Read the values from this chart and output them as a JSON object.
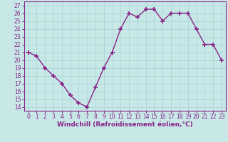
{
  "x": [
    0,
    1,
    2,
    3,
    4,
    5,
    6,
    7,
    8,
    9,
    10,
    11,
    12,
    13,
    14,
    15,
    16,
    17,
    18,
    19,
    20,
    21,
    22,
    23
  ],
  "y": [
    21,
    20.5,
    19,
    18,
    17,
    15.5,
    14.5,
    14,
    16.5,
    19,
    21,
    24,
    26,
    25.5,
    26.5,
    26.5,
    25,
    26,
    26,
    26,
    24,
    22,
    22,
    20
  ],
  "line_color": "#882288",
  "marker": "+",
  "marker_size": 4,
  "marker_lw": 1.2,
  "line_width": 1.0,
  "bg_color": "#c8e8e8",
  "grid_color": "#b0d8d8",
  "xlabel": "Windchill (Refroidissement éolien,°C)",
  "xlabel_color": "#882288",
  "xlabel_fontsize": 6.5,
  "tick_label_color": "#882288",
  "tick_fontsize": 5.5,
  "ylim": [
    13.5,
    27.5
  ],
  "yticks": [
    14,
    15,
    16,
    17,
    18,
    19,
    20,
    21,
    22,
    23,
    24,
    25,
    26,
    27
  ],
  "xlim": [
    -0.5,
    23.5
  ],
  "xticks": [
    0,
    1,
    2,
    3,
    4,
    5,
    6,
    7,
    8,
    9,
    10,
    11,
    12,
    13,
    14,
    15,
    16,
    17,
    18,
    19,
    20,
    21,
    22,
    23
  ]
}
